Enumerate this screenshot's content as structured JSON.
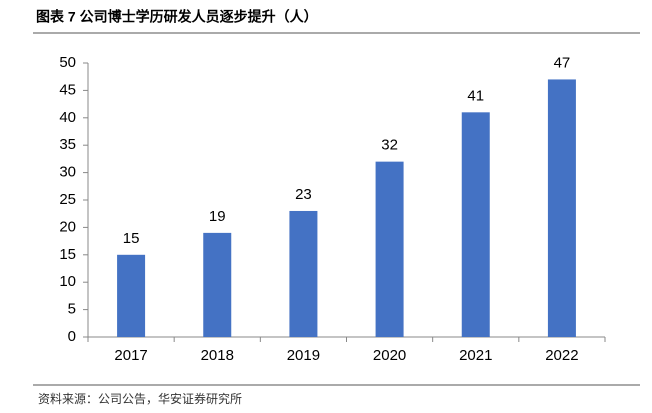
{
  "chart_data": {
    "type": "bar",
    "title": "图表 7 公司博士学历研发人员逐步提升（人）",
    "categories": [
      "2017",
      "2018",
      "2019",
      "2020",
      "2021",
      "2022"
    ],
    "values": [
      15,
      19,
      23,
      32,
      41,
      47
    ],
    "color": "#4472c4",
    "ylim": [
      0,
      50
    ],
    "yticks": [
      0,
      5,
      10,
      15,
      20,
      25,
      30,
      35,
      40,
      45,
      50
    ],
    "source": "资料来源：公司公告，华安证券研究所"
  }
}
